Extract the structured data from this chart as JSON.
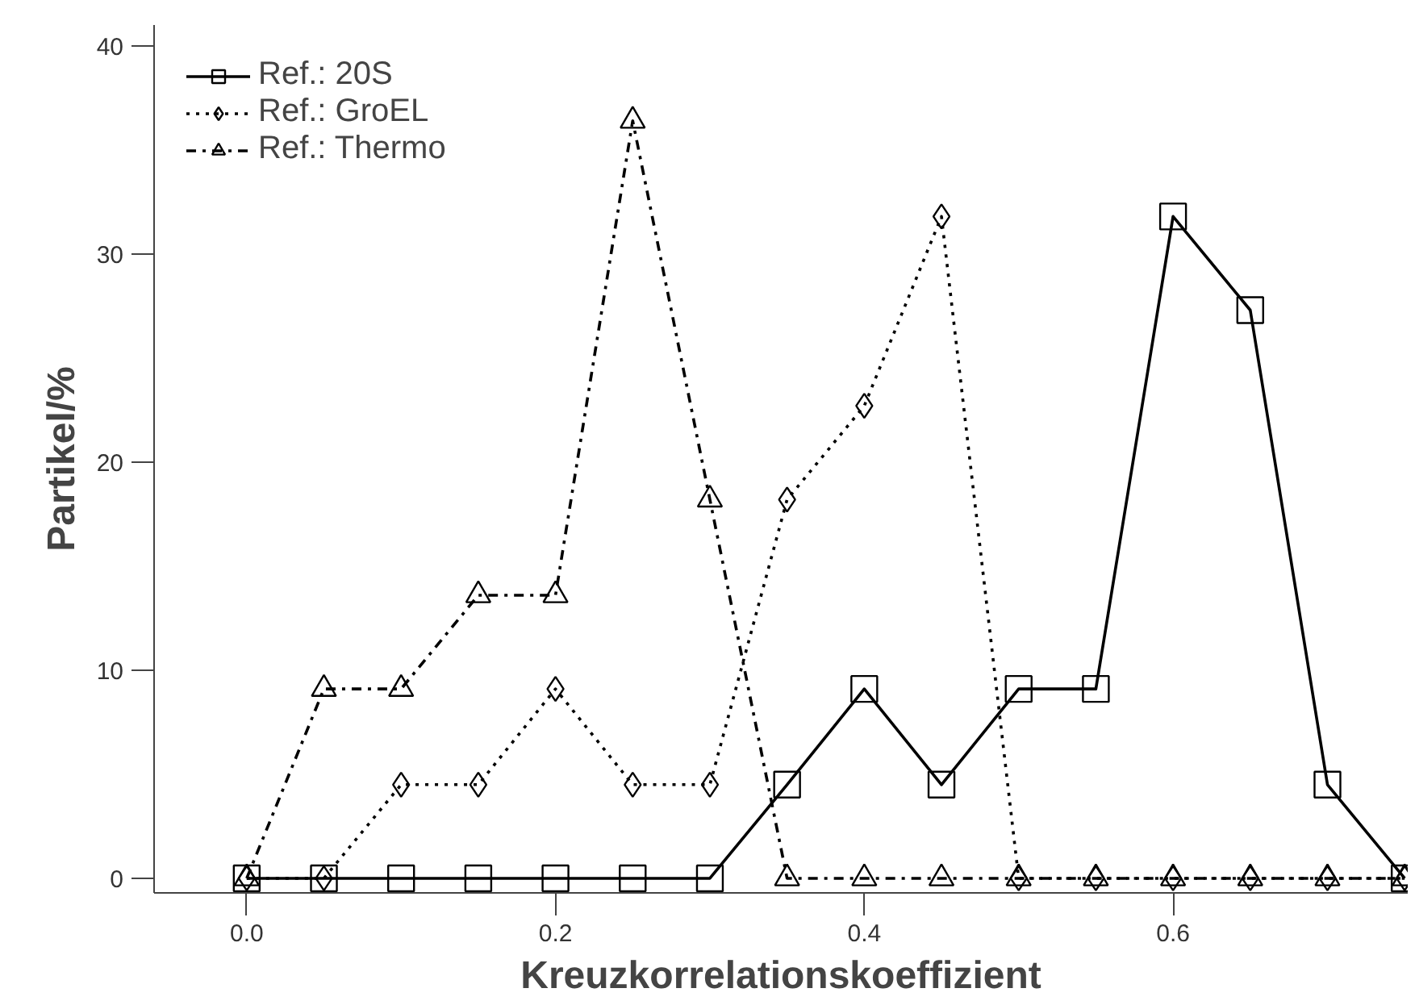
{
  "chart_data": {
    "type": "line",
    "xlabel": "Kreuzkorrelationskoeffizient",
    "ylabel": "Partikel/%",
    "x": [
      0.0,
      0.05,
      0.1,
      0.15,
      0.2,
      0.25,
      0.3,
      0.35,
      0.4,
      0.45,
      0.5,
      0.55,
      0.6,
      0.65,
      0.7,
      0.75
    ],
    "series": [
      {
        "name": "Ref.: 20S",
        "color": "#000000",
        "marker": "square",
        "line_style": "solid",
        "values": [
          0,
          0,
          0,
          0,
          0,
          0,
          0,
          4.5,
          9.1,
          4.5,
          9.1,
          9.1,
          31.8,
          27.3,
          4.5,
          0
        ]
      },
      {
        "name": "Ref.: GroEL",
        "color": "#000000",
        "marker": "diamond",
        "line_style": "dotted",
        "values": [
          0,
          0,
          4.5,
          4.5,
          9.1,
          4.5,
          4.5,
          18.2,
          22.7,
          31.8,
          0,
          0,
          0,
          0,
          0,
          0
        ]
      },
      {
        "name": "Ref.: Thermo",
        "color": "#000000",
        "marker": "triangle",
        "line_style": "dashed",
        "values": [
          0,
          9.1,
          9.1,
          13.6,
          13.6,
          36.4,
          18.2,
          0,
          0,
          0,
          0,
          0,
          0,
          0,
          0,
          0
        ]
      }
    ],
    "xlim": [
      -0.06,
      0.752
    ],
    "ylim": [
      -0.7,
      41
    ],
    "xticks": [
      {
        "value": 0,
        "label": "0.0"
      },
      0.2,
      0.4,
      0.6
    ],
    "yticks": [
      0,
      10,
      20,
      30,
      40
    ],
    "grid": false,
    "legend": "top left"
  }
}
